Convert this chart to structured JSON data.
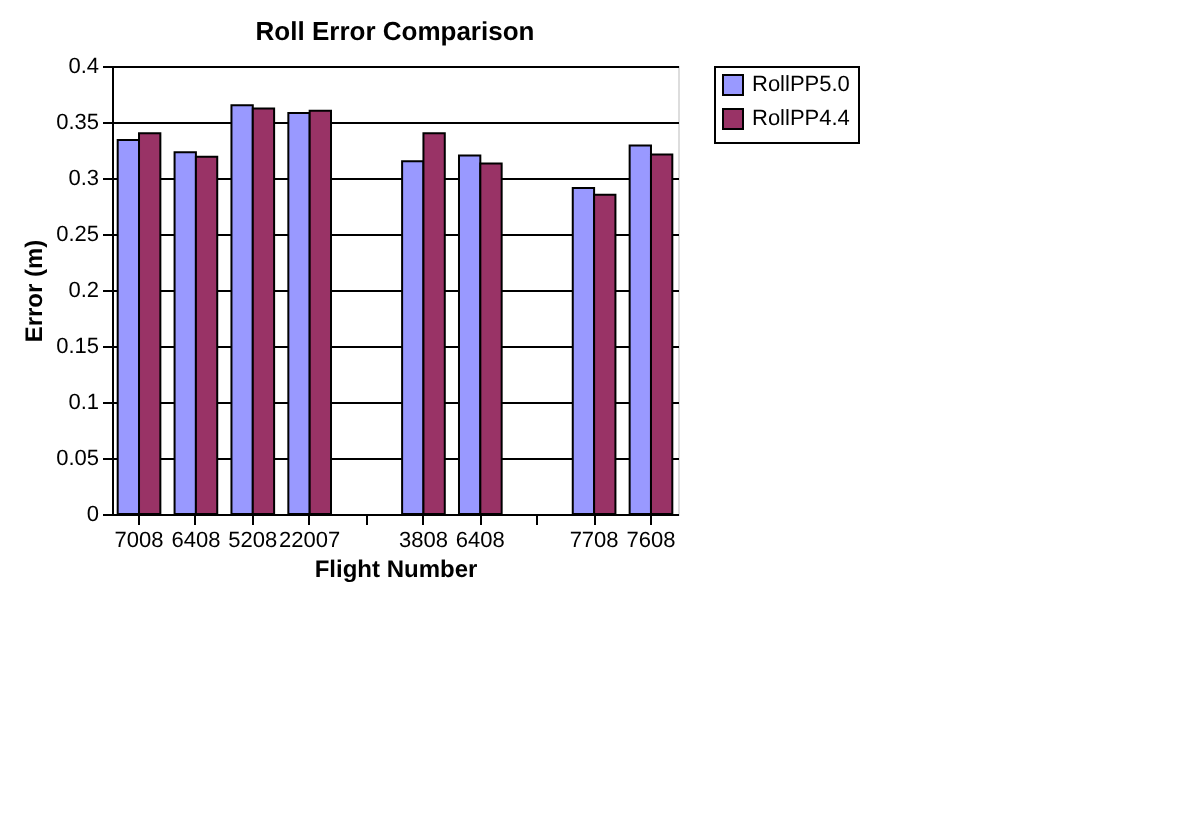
{
  "chart_data": {
    "type": "bar",
    "title": "Roll Error Comparison",
    "xlabel": "Flight Number",
    "ylabel": "Error (m)",
    "categories": [
      "7008",
      "6408",
      "5208",
      "22007",
      null,
      "3808",
      "6408",
      null,
      "7708",
      "7608"
    ],
    "series": [
      {
        "name": "RollPP5.0",
        "color": "#9999ff",
        "values": [
          0.334,
          0.323,
          0.365,
          0.358,
          null,
          0.315,
          0.32,
          null,
          0.291,
          0.329
        ]
      },
      {
        "name": "RollPP4.4",
        "color": "#993366",
        "values": [
          0.34,
          0.319,
          0.362,
          0.36,
          null,
          0.34,
          0.313,
          null,
          0.285,
          0.321
        ]
      }
    ],
    "ylim": [
      0,
      0.4
    ],
    "yticks": [
      0,
      0.05,
      0.1,
      0.15,
      0.2,
      0.25,
      0.3,
      0.35,
      0.4
    ],
    "grid": "y",
    "legend": "right"
  }
}
